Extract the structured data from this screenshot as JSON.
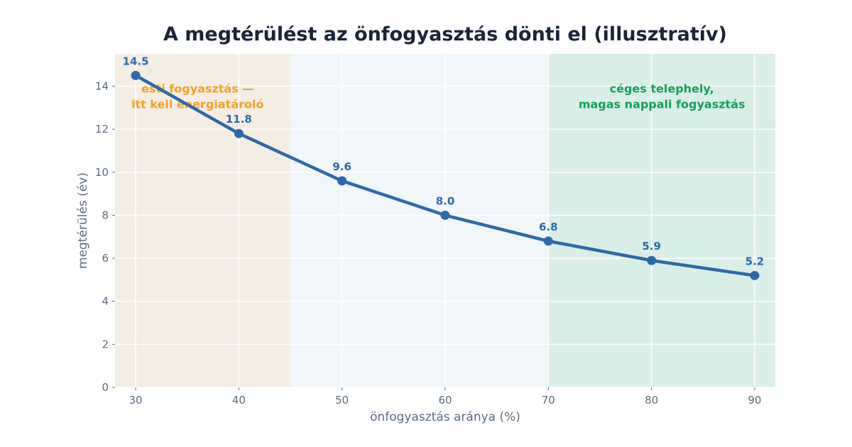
{
  "chart_data": {
    "type": "line",
    "title": "A megtérülést az önfogyasztás dönti el (illusztratív)",
    "xlabel": "önfogyasztás aránya (%)",
    "ylabel": "megtérülés (év)",
    "xlim": [
      28,
      92
    ],
    "ylim": [
      0,
      15.5
    ],
    "x_ticks": [
      30,
      40,
      50,
      60,
      70,
      80,
      90
    ],
    "y_ticks": [
      0,
      2,
      4,
      6,
      8,
      10,
      12,
      14
    ],
    "grid": true,
    "series": [
      {
        "x": [
          30,
          40,
          50,
          60,
          70,
          80,
          90
        ],
        "values": [
          14.5,
          11.8,
          9.6,
          8.0,
          6.8,
          5.9,
          5.2
        ],
        "labels": [
          "14.5",
          "11.8",
          "9.6",
          "8.0",
          "6.8",
          "5.9",
          "5.2"
        ],
        "color": "#2d69a8"
      }
    ],
    "bands": [
      {
        "x_from": 28,
        "x_to": 45,
        "color": "#f4ede3"
      },
      {
        "x_from": 45,
        "x_to": 70,
        "color": "#f1f6fb"
      },
      {
        "x_from": 70,
        "x_to": 92,
        "color": "#daeee8"
      }
    ],
    "annotations": [
      {
        "lines": [
          "esti fogyasztás —",
          "itt kell energiatároló"
        ],
        "x": 36,
        "y": 13.7,
        "color": "#f0a227"
      },
      {
        "lines": [
          "céges telephely,",
          "magas nappali fogyasztás"
        ],
        "x": 81,
        "y": 13.7,
        "color": "#12a05a"
      }
    ]
  }
}
